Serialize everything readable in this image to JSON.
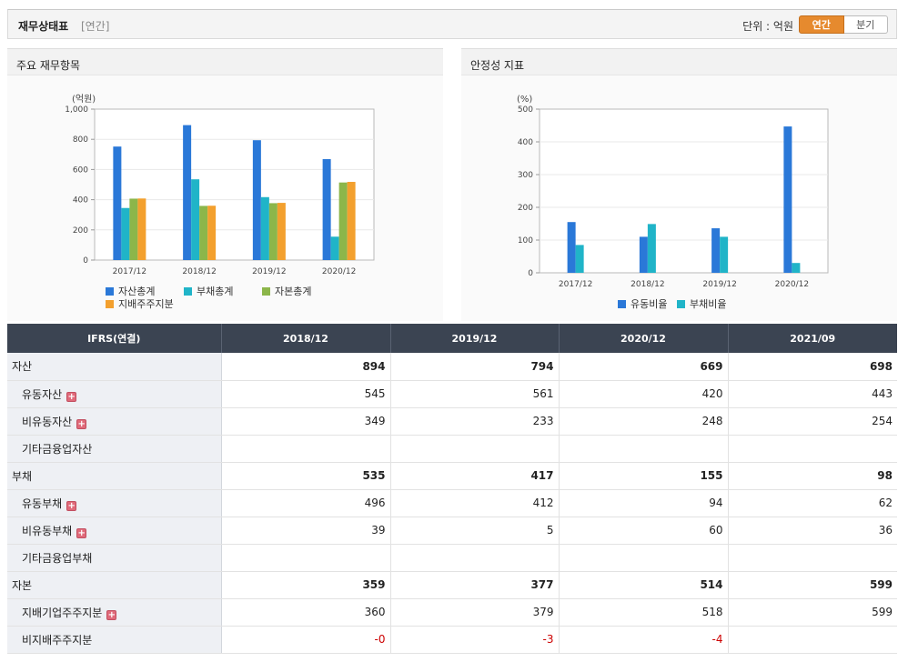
{
  "header": {
    "title": "재무상태표",
    "subtitle": "[연간]",
    "unit_label": "단위 : 억원",
    "toggle_annual": "연간",
    "toggle_quarter": "분기"
  },
  "panels": {
    "left_title": "주요 재무항목",
    "right_title": "안정성 지표"
  },
  "colors": {
    "total_assets": "#2a78d8",
    "total_liabilities": "#20b4c8",
    "total_equity": "#8cb64a",
    "controlling_equity": "#f3a02e",
    "accent": "#e68a2e",
    "header_bg": "#3b4452"
  },
  "chart_data": [
    {
      "type": "bar",
      "title": "",
      "ylabel": "(억원)",
      "categories": [
        "2017/12",
        "2018/12",
        "2019/12",
        "2020/12"
      ],
      "ylim": [
        0,
        1000
      ],
      "yticks": [
        "0",
        "200",
        "400",
        "600",
        "800",
        "1,000"
      ],
      "legend_position": "bottom",
      "grid": true,
      "series": [
        {
          "name": "자산총계",
          "values": [
            752,
            894,
            794,
            669
          ]
        },
        {
          "name": "부채총계",
          "values": [
            345,
            535,
            417,
            155
          ]
        },
        {
          "name": "자본총계",
          "values": [
            407,
            359,
            377,
            514
          ]
        },
        {
          "name": "지배주주지분",
          "values": [
            408,
            360,
            379,
            518
          ]
        }
      ]
    },
    {
      "type": "bar",
      "title": "",
      "ylabel": "(%)",
      "categories": [
        "2017/12",
        "2018/12",
        "2019/12",
        "2020/12"
      ],
      "ylim": [
        0,
        500
      ],
      "yticks": [
        "0",
        "100",
        "200",
        "300",
        "400",
        "500"
      ],
      "legend_position": "bottom",
      "grid": true,
      "series": [
        {
          "name": "유동비율",
          "values": [
            155,
            110,
            136,
            447
          ]
        },
        {
          "name": "부채비율",
          "values": [
            85,
            149,
            110,
            30
          ]
        }
      ]
    }
  ],
  "table": {
    "header_label": "IFRS(연결)",
    "columns": [
      "2018/12",
      "2019/12",
      "2020/12",
      "2021/09"
    ],
    "rows": [
      {
        "label": "자산",
        "values": [
          "894",
          "794",
          "669",
          "698"
        ]
      },
      {
        "label": "유동자산",
        "values": [
          "545",
          "561",
          "420",
          "443"
        ]
      },
      {
        "label": "비유동자산",
        "values": [
          "349",
          "233",
          "248",
          "254"
        ]
      },
      {
        "label": "기타금융업자산",
        "values": [
          "",
          "",
          "",
          ""
        ]
      },
      {
        "label": "부채",
        "values": [
          "535",
          "417",
          "155",
          "98"
        ]
      },
      {
        "label": "유동부채",
        "values": [
          "496",
          "412",
          "94",
          "62"
        ]
      },
      {
        "label": "비유동부채",
        "values": [
          "39",
          "5",
          "60",
          "36"
        ]
      },
      {
        "label": "기타금융업부채",
        "values": [
          "",
          "",
          "",
          ""
        ]
      },
      {
        "label": "자본",
        "values": [
          "359",
          "377",
          "514",
          "599"
        ]
      },
      {
        "label": "지배기업주주지분",
        "values": [
          "360",
          "379",
          "518",
          "599"
        ]
      },
      {
        "label": "비지배주주지분",
        "values": [
          "-0",
          "-3",
          "-4",
          ""
        ]
      }
    ]
  }
}
